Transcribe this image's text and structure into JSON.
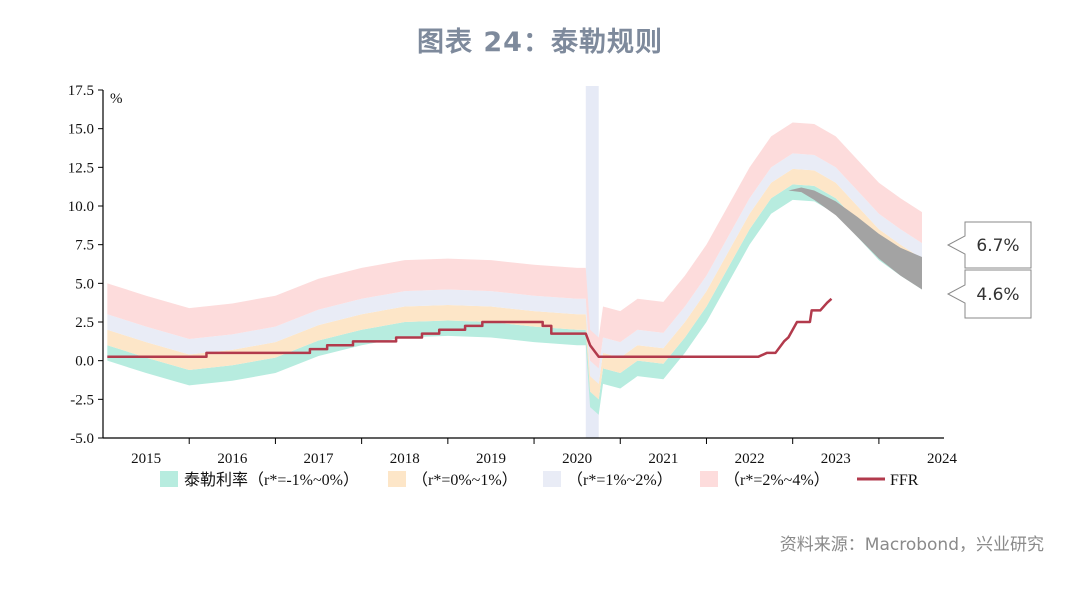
{
  "title": "图表 24：泰勒规则",
  "source": "资料来源：Macrobond，兴业研究",
  "chart_data": {
    "type": "area",
    "unit": "%",
    "ylim": [
      -5.0,
      17.5
    ],
    "yticks": [
      "17.5",
      "15.0",
      "12.5",
      "10.0",
      "7.5",
      "5.0",
      "2.5",
      "0.0",
      "-2.5",
      "-5.0"
    ],
    "xlim": [
      2014.5,
      2024.0
    ],
    "xticks": [
      "2015",
      "2016",
      "2017",
      "2018",
      "2019",
      "2020",
      "2021",
      "2022",
      "2023",
      "2024"
    ],
    "shading": {
      "from": 2020.1,
      "to": 2020.25,
      "color": "#e6eaf6"
    },
    "x": [
      2014.55,
      2015.0,
      2015.5,
      2016.0,
      2016.5,
      2017.0,
      2017.5,
      2018.0,
      2018.5,
      2019.0,
      2019.5,
      2020.0,
      2020.1,
      2020.15,
      2020.25,
      2020.3,
      2020.5,
      2020.7,
      2021.0,
      2021.25,
      2021.5,
      2021.75,
      2022.0,
      2022.25,
      2022.5,
      2022.75,
      2023.0,
      2023.25,
      2023.5,
      2023.75,
      2024.0
    ],
    "series": [
      {
        "name": "泰勒利率（r*=-1%~0%）",
        "color": "#b7ecdf",
        "lower": [
          0.0,
          -0.8,
          -1.6,
          -1.3,
          -0.8,
          0.3,
          1.0,
          1.5,
          1.6,
          1.5,
          1.2,
          1.0,
          1.0,
          -3.0,
          -3.5,
          -1.5,
          -1.8,
          -1.0,
          -1.2,
          0.5,
          2.5,
          5.0,
          7.5,
          9.5,
          10.4,
          10.3,
          9.5,
          8.0,
          6.5,
          5.5,
          4.6
        ],
        "upper": [
          1.0,
          0.2,
          -0.6,
          -0.3,
          0.2,
          1.3,
          2.0,
          2.5,
          2.6,
          2.5,
          2.2,
          2.0,
          2.0,
          -2.0,
          -2.5,
          -0.5,
          -0.8,
          0.0,
          -0.2,
          1.5,
          3.5,
          6.0,
          8.5,
          10.5,
          11.4,
          11.3,
          10.5,
          9.0,
          7.5,
          6.5,
          5.6
        ]
      },
      {
        "name": "（r*=0%~1%）",
        "color": "#fde6c8",
        "lower": [
          1.0,
          0.2,
          -0.6,
          -0.3,
          0.2,
          1.3,
          2.0,
          2.5,
          2.6,
          2.5,
          2.2,
          2.0,
          2.0,
          -2.0,
          -2.5,
          -0.5,
          -0.8,
          0.0,
          -0.2,
          1.5,
          3.5,
          6.0,
          8.5,
          10.5,
          11.4,
          11.3,
          10.5,
          9.0,
          7.5,
          6.5,
          5.6
        ],
        "upper": [
          2.0,
          1.2,
          0.4,
          0.7,
          1.2,
          2.3,
          3.0,
          3.5,
          3.6,
          3.5,
          3.2,
          3.0,
          3.0,
          -1.0,
          -1.5,
          0.5,
          0.2,
          1.0,
          0.8,
          2.5,
          4.5,
          7.0,
          9.5,
          11.5,
          12.4,
          12.3,
          11.5,
          10.0,
          8.5,
          7.5,
          6.6
        ]
      },
      {
        "name": "（r*=1%~2%）",
        "color": "#e9ecf6",
        "lower": [
          2.0,
          1.2,
          0.4,
          0.7,
          1.2,
          2.3,
          3.0,
          3.5,
          3.6,
          3.5,
          3.2,
          3.0,
          3.0,
          -1.0,
          -1.5,
          0.5,
          0.2,
          1.0,
          0.8,
          2.5,
          4.5,
          7.0,
          9.5,
          11.5,
          12.4,
          12.3,
          11.5,
          10.0,
          8.5,
          7.5,
          6.6
        ],
        "upper": [
          3.0,
          2.2,
          1.4,
          1.7,
          2.2,
          3.3,
          4.0,
          4.5,
          4.6,
          4.5,
          4.2,
          4.0,
          4.0,
          0.0,
          -0.5,
          1.5,
          1.2,
          2.0,
          1.8,
          3.5,
          5.5,
          8.0,
          10.5,
          12.5,
          13.4,
          13.3,
          12.5,
          11.0,
          9.5,
          8.5,
          7.6
        ]
      },
      {
        "name": "（r*=2%~4%）",
        "color": "#fddcdc",
        "lower": [
          3.0,
          2.2,
          1.4,
          1.7,
          2.2,
          3.3,
          4.0,
          4.5,
          4.6,
          4.5,
          4.2,
          4.0,
          4.0,
          0.0,
          -0.5,
          1.5,
          1.2,
          2.0,
          1.8,
          3.5,
          5.5,
          8.0,
          10.5,
          12.5,
          13.4,
          13.3,
          12.5,
          11.0,
          9.5,
          8.5,
          7.6
        ],
        "upper": [
          5.0,
          4.2,
          3.4,
          3.7,
          4.2,
          5.3,
          6.0,
          6.5,
          6.6,
          6.5,
          6.2,
          6.0,
          6.0,
          2.0,
          1.5,
          3.5,
          3.2,
          4.0,
          3.8,
          5.5,
          7.5,
          10.0,
          12.5,
          14.5,
          15.4,
          15.3,
          14.5,
          13.0,
          11.5,
          10.5,
          9.6
        ]
      }
    ],
    "gray_band": {
      "color": "#a3a3a3",
      "x": [
        2022.45,
        2022.6,
        2022.75,
        2023.0,
        2023.25,
        2023.5,
        2023.75,
        2024.0
      ],
      "upper": [
        11.0,
        11.2,
        11.0,
        10.3,
        9.3,
        8.2,
        7.3,
        6.7
      ],
      "lower": [
        11.0,
        10.9,
        10.4,
        9.4,
        8.0,
        6.6,
        5.5,
        4.6
      ]
    },
    "ffr": {
      "name": "FFR",
      "color": "#b23a4c",
      "x": [
        2014.55,
        2015.7,
        2015.7,
        2016.2,
        2016.9,
        2016.9,
        2017.1,
        2017.1,
        2017.4,
        2017.4,
        2017.9,
        2017.9,
        2018.2,
        2018.2,
        2018.4,
        2018.4,
        2018.7,
        2018.7,
        2018.9,
        2018.9,
        2019.5,
        2019.6,
        2019.6,
        2019.7,
        2019.7,
        2020.1,
        2020.15,
        2020.25,
        2022.1,
        2022.2,
        2022.3,
        2022.4,
        2022.45,
        2022.55,
        2022.62,
        2022.7,
        2022.72,
        2022.82,
        2022.9,
        2022.95
      ],
      "y": [
        0.25,
        0.25,
        0.5,
        0.5,
        0.5,
        0.75,
        0.75,
        1.0,
        1.0,
        1.25,
        1.25,
        1.5,
        1.5,
        1.75,
        1.75,
        2.0,
        2.0,
        2.25,
        2.25,
        2.5,
        2.5,
        2.5,
        2.25,
        2.25,
        1.75,
        1.75,
        1.0,
        0.25,
        0.25,
        0.5,
        0.5,
        1.25,
        1.5,
        2.5,
        2.5,
        2.5,
        3.25,
        3.25,
        3.75,
        4.0
      ]
    },
    "callouts": [
      "6.7%",
      "4.6%"
    ],
    "legend": [
      "泰勒利率（r*=-1%~0%）",
      "（r*=0%~1%）",
      "（r*=1%~2%）",
      "（r*=2%~4%）",
      "FFR"
    ]
  }
}
